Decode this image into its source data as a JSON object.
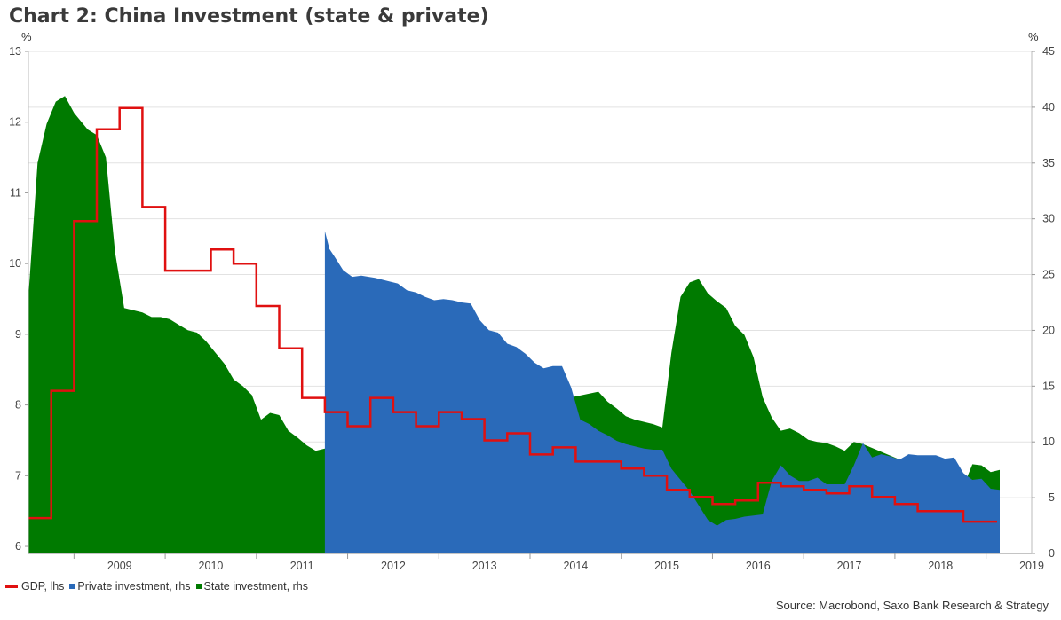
{
  "chart_data": {
    "type": "area",
    "title": "Chart 2: China Investment (state & private)",
    "source": "Source: Macrobond, Saxo Bank Research & Strategy",
    "ylabel_left": "%",
    "ylabel_right": "%",
    "xlim": [
      2008.5,
      2019.5
    ],
    "ylim_left": [
      5.9,
      13
    ],
    "ylim_right": [
      0,
      45
    ],
    "yticks_left": [
      6,
      7,
      8,
      9,
      10,
      11,
      12,
      13
    ],
    "yticks_right": [
      0,
      5,
      10,
      15,
      20,
      25,
      30,
      35,
      40,
      45
    ],
    "xticks": [
      "2009",
      "2010",
      "2011",
      "2012",
      "2013",
      "2014",
      "2015",
      "2016",
      "2017",
      "2018",
      "2019"
    ],
    "grid": true,
    "legend_position": "bottom-left",
    "series": [
      {
        "name": "GDP, lhs",
        "axis": "left",
        "color": "#e01010",
        "step": true,
        "x": [
          2008.5,
          2008.75,
          2009.0,
          2009.25,
          2009.5,
          2009.75,
          2010.0,
          2010.25,
          2010.5,
          2010.75,
          2011.0,
          2011.25,
          2011.5,
          2011.75,
          2012.0,
          2012.25,
          2012.5,
          2012.75,
          2013.0,
          2013.25,
          2013.5,
          2013.75,
          2014.0,
          2014.25,
          2014.5,
          2014.75,
          2015.0,
          2015.25,
          2015.5,
          2015.75,
          2016.0,
          2016.25,
          2016.5,
          2016.75,
          2017.0,
          2017.25,
          2017.5,
          2017.75,
          2018.0,
          2018.25,
          2018.5,
          2018.75,
          2019.0
        ],
        "values": [
          6.4,
          8.2,
          10.6,
          11.9,
          12.2,
          10.8,
          9.9,
          9.9,
          10.2,
          10.0,
          9.4,
          8.8,
          8.1,
          7.9,
          7.7,
          8.1,
          7.9,
          7.7,
          7.9,
          7.8,
          7.5,
          7.6,
          7.3,
          7.4,
          7.2,
          7.2,
          7.1,
          7.0,
          6.8,
          6.7,
          6.6,
          6.65,
          6.9,
          6.85,
          6.8,
          6.75,
          6.85,
          6.7,
          6.6,
          6.5,
          6.5,
          6.35,
          6.35
        ]
      },
      {
        "name": "Private investment, rhs",
        "axis": "right",
        "color": "#2a6ab9",
        "x": [
          2011.75,
          2011.8,
          2011.85,
          2011.95,
          2012.05,
          2012.15,
          2012.3,
          2012.45,
          2012.55,
          2012.65,
          2012.75,
          2012.85,
          2012.95,
          2013.05,
          2013.15,
          2013.25,
          2013.35,
          2013.45,
          2013.55,
          2013.65,
          2013.75,
          2013.85,
          2013.95,
          2014.05,
          2014.15,
          2014.25,
          2014.35,
          2014.45,
          2014.55,
          2014.65,
          2014.75,
          2014.85,
          2014.95,
          2015.05,
          2015.15,
          2015.25,
          2015.35,
          2015.45,
          2015.55,
          2015.65,
          2015.75,
          2015.85,
          2015.95,
          2016.05,
          2016.15,
          2016.25,
          2016.35,
          2016.45,
          2016.55,
          2016.65,
          2016.75,
          2016.85,
          2016.95,
          2017.05,
          2017.15,
          2017.25,
          2017.35,
          2017.45,
          2017.55,
          2017.65,
          2017.75,
          2017.85,
          2017.95,
          2018.05,
          2018.15,
          2018.25,
          2018.35,
          2018.45,
          2018.55,
          2018.65,
          2018.75,
          2018.85,
          2018.95,
          2019.05,
          2019.15
        ],
        "values": [
          28.9,
          27.3,
          26.7,
          25.4,
          24.8,
          24.9,
          24.7,
          24.4,
          24.2,
          23.6,
          23.4,
          23.0,
          22.7,
          22.8,
          22.7,
          22.5,
          22.4,
          20.9,
          20.0,
          19.8,
          18.8,
          18.5,
          17.9,
          17.1,
          16.6,
          16.8,
          16.8,
          14.9,
          12.0,
          11.6,
          11.0,
          10.6,
          10.1,
          9.8,
          9.6,
          9.4,
          9.3,
          9.3,
          7.6,
          6.6,
          5.6,
          4.3,
          3.0,
          2.5,
          3.0,
          3.1,
          3.3,
          3.4,
          3.5,
          6.5,
          7.9,
          7.0,
          6.5,
          6.5,
          6.8,
          6.2,
          6.2,
          6.2,
          7.9,
          9.9,
          8.6,
          8.9,
          8.7,
          8.4,
          8.9,
          8.8,
          8.8,
          8.8,
          8.5,
          8.6,
          7.2,
          6.6,
          6.7,
          5.8,
          5.7
        ]
      },
      {
        "name": "State investment, rhs",
        "axis": "right",
        "color": "#007a00",
        "x": [
          2008.5,
          2008.6,
          2008.7,
          2008.8,
          2008.9,
          2009.0,
          2009.05,
          2009.15,
          2009.25,
          2009.35,
          2009.45,
          2009.55,
          2009.65,
          2009.75,
          2009.85,
          2009.95,
          2010.05,
          2010.15,
          2010.25,
          2010.35,
          2010.45,
          2010.55,
          2010.65,
          2010.75,
          2010.85,
          2010.95,
          2011.05,
          2011.15,
          2011.25,
          2011.35,
          2011.45,
          2011.55,
          2011.65,
          2011.75,
          2014.75,
          2014.85,
          2014.95,
          2015.05,
          2015.15,
          2015.25,
          2015.35,
          2015.45,
          2015.55,
          2015.65,
          2015.75,
          2015.85,
          2015.95,
          2016.05,
          2016.15,
          2016.25,
          2016.35,
          2016.45,
          2016.55,
          2016.65,
          2016.75,
          2016.85,
          2016.95,
          2017.05,
          2017.15,
          2017.25,
          2017.35,
          2017.45,
          2017.55,
          2017.65,
          2018.75,
          2018.85,
          2018.95,
          2019.05,
          2019.15
        ],
        "values": [
          23.0,
          35.0,
          38.5,
          40.5,
          41.0,
          39.5,
          39.0,
          38.0,
          37.5,
          35.5,
          27.0,
          22.0,
          21.8,
          21.6,
          21.2,
          21.2,
          21.0,
          20.5,
          20.0,
          19.8,
          19.0,
          18.0,
          17.0,
          15.6,
          15.0,
          14.2,
          12.0,
          12.6,
          12.4,
          11.0,
          10.4,
          9.7,
          9.2,
          9.4,
          14.5,
          13.6,
          13.0,
          12.3,
          12.0,
          11.8,
          11.6,
          11.3,
          18.0,
          23.0,
          24.3,
          24.6,
          23.3,
          22.6,
          22.0,
          20.4,
          19.6,
          17.6,
          14.0,
          12.2,
          11.0,
          11.2,
          10.8,
          10.2,
          10.0,
          9.9,
          9.6,
          9.2,
          10.0,
          9.8,
          6.0,
          8.0,
          7.9,
          7.3,
          7.5
        ]
      }
    ]
  }
}
